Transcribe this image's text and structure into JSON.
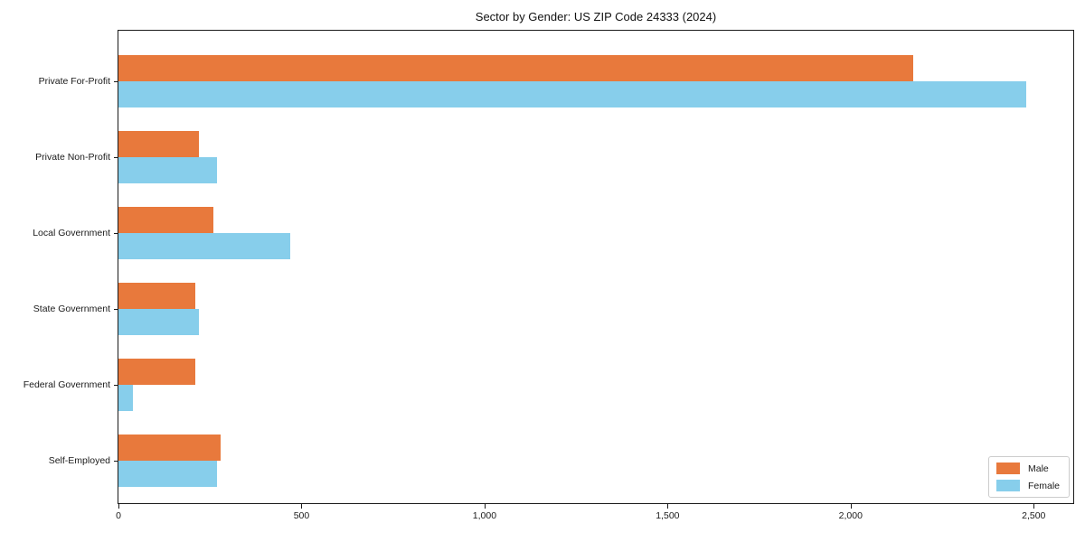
{
  "title": "Sector by Gender: US ZIP Code 24333 (2024)",
  "chart_data": {
    "type": "bar",
    "orientation": "horizontal",
    "title": "Sector by Gender: US ZIP Code 24333 (2024)",
    "categories": [
      "Private For-Profit",
      "Private Non-Profit",
      "Local Government",
      "State Government",
      "Federal Government",
      "Self-Employed"
    ],
    "series": [
      {
        "name": "Male",
        "color": "#e8793c",
        "values": [
          2170,
          220,
          260,
          210,
          210,
          280
        ]
      },
      {
        "name": "Female",
        "color": "#87ceeb",
        "values": [
          2480,
          270,
          470,
          220,
          40,
          270
        ]
      }
    ],
    "xlim": [
      0,
      2608
    ],
    "xticks": [
      0,
      500,
      1000,
      1500,
      2000,
      2500
    ],
    "xtick_labels": [
      "0",
      "500",
      "1,000",
      "1,500",
      "2,000",
      "2,500"
    ],
    "xlabel": "",
    "ylabel": "",
    "grid": false,
    "legend_position": "lower right"
  }
}
